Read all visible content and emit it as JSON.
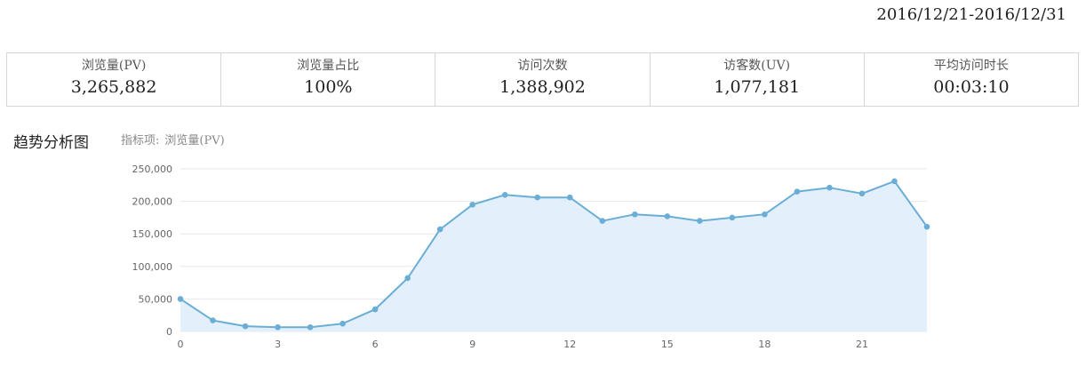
{
  "header": {
    "date_range": "2016/12/21-2016/12/31"
  },
  "stats": [
    {
      "label": "浏览量(PV)",
      "value": "3,265,882"
    },
    {
      "label": "浏览量占比",
      "value": "100%"
    },
    {
      "label": "访问次数",
      "value": "1,388,902"
    },
    {
      "label": "访客数(UV)",
      "value": "1,077,181"
    },
    {
      "label": "平均访问时长",
      "value": "00:03:10"
    }
  ],
  "trend": {
    "title": "趋势分析图",
    "metric_prefix": "指标项:",
    "metric_name": "浏览量(PV)"
  },
  "colors": {
    "line": "#6aaed6",
    "fill": "#deedfb",
    "grid": "#e8e8e8"
  },
  "chart_data": {
    "type": "area",
    "title": "",
    "xlabel": "",
    "ylabel": "",
    "x": [
      0,
      1,
      2,
      3,
      4,
      5,
      6,
      7,
      8,
      9,
      10,
      11,
      12,
      13,
      14,
      15,
      16,
      17,
      18,
      19,
      20,
      21,
      22,
      23
    ],
    "series": [
      {
        "values": [
          50000,
          17000,
          8000,
          6500,
          6500,
          12000,
          34000,
          82000,
          157000,
          195000,
          210000,
          206000,
          206000,
          170000,
          180000,
          177000,
          170000,
          175000,
          180000,
          215000,
          221000,
          212000,
          231000,
          161000
        ]
      }
    ],
    "xticks": [
      0,
      3,
      6,
      9,
      12,
      15,
      18,
      21
    ],
    "yticks": [
      0,
      50000,
      100000,
      150000,
      200000,
      250000
    ],
    "ytick_labels": [
      "0",
      "50,000",
      "100,000",
      "150,000",
      "200,000",
      "250,000"
    ],
    "xlim": [
      0,
      23
    ],
    "ylim": [
      0,
      250000
    ],
    "grid": true,
    "legend": "none"
  }
}
